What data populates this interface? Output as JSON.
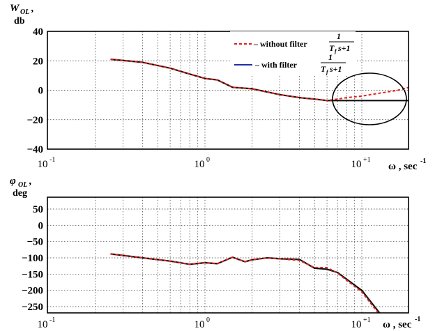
{
  "chart_data": [
    {
      "type": "line",
      "ylabel_main": "W",
      "ylabel_sub": "OL",
      "ylabel_unit": "db",
      "xlabel": "ω , sec",
      "xlabel_sup": "-1",
      "x_scale": "log",
      "xlim": [
        0.1,
        30
      ],
      "ylim": [
        -40,
        40
      ],
      "y_ticks": [
        "40",
        "20",
        "0",
        "−20",
        "−40"
      ],
      "x_ticks": [
        {
          "base": "10",
          "exp": "-1"
        },
        {
          "base": "10",
          "exp": "0"
        },
        {
          "base": "10",
          "exp": "+1"
        }
      ],
      "grid": true,
      "legend": {
        "placement": "top-right",
        "entries": [
          {
            "prefix": "– without filter",
            "num": "1",
            "den": "T",
            "den_sub": "f",
            "den_rest": "s+1"
          },
          {
            "prefix": "– with filter",
            "num": "1",
            "den": "T",
            "den_sub": "f",
            "den_rest": "s+1"
          }
        ]
      },
      "series": [
        {
          "name": "without filter",
          "color": "#e0201b",
          "dash": true,
          "x": [
            0.25,
            0.4,
            0.6,
            0.8,
            1.0,
            1.2,
            1.5,
            2.0,
            3.0,
            4.0,
            5.0,
            6.0,
            7.0,
            8.0,
            10.0,
            13.0,
            17.0,
            20.0
          ],
          "y": [
            21,
            19,
            15,
            11,
            8,
            7,
            2,
            1,
            -3,
            -5,
            -6,
            -7,
            -6,
            -5,
            -4,
            -2,
            0,
            2
          ]
        },
        {
          "name": "with filter",
          "color": "#111111",
          "dash": false,
          "x": [
            0.25,
            0.4,
            0.6,
            0.8,
            1.0,
            1.2,
            1.5,
            2.0,
            3.0,
            4.0,
            5.0,
            6.0,
            7.0,
            8.0,
            10.0,
            13.0,
            17.0,
            20.0
          ],
          "y": [
            21,
            19,
            15,
            11,
            8,
            7,
            2,
            1,
            -3,
            -5,
            -6,
            -7,
            -7,
            -7,
            -7,
            -7,
            -7,
            -7
          ]
        }
      ],
      "annotations": [
        {
          "type": "ellipse",
          "color": "#000000",
          "center_x": 11.0,
          "center_y": -1.3
        }
      ]
    },
    {
      "type": "line",
      "ylabel_main": "φ",
      "ylabel_sub": "OL",
      "ylabel_unit": "deg",
      "xlabel": "ω , sec",
      "xlabel_sup": "-1",
      "x_scale": "log",
      "xlim": [
        0.1,
        30
      ],
      "ylim": [
        -270,
        75
      ],
      "y_ticks": [
        "50",
        "0",
        "−50",
        "−100",
        "−150",
        "−200",
        "−250"
      ],
      "x_ticks": [
        {
          "base": "10",
          "exp": "-1"
        },
        {
          "base": "10",
          "exp": "0"
        },
        {
          "base": "10",
          "exp": "+1"
        }
      ],
      "grid": true,
      "series": [
        {
          "name": "without filter",
          "color": "#e0201b",
          "dash": true,
          "x": [
            0.25,
            0.4,
            0.6,
            0.8,
            1.0,
            1.2,
            1.5,
            1.8,
            2.0,
            2.5,
            3.0,
            4.0,
            5.0,
            6.0,
            7.0,
            10.0,
            13.0
          ],
          "y": [
            -88,
            -100,
            -110,
            -120,
            -115,
            -118,
            -98,
            -112,
            -106,
            -100,
            -103,
            -108,
            -130,
            -130,
            -147,
            -205,
            -275
          ]
        },
        {
          "name": "with filter",
          "color": "#111111",
          "dash": false,
          "x": [
            0.25,
            0.4,
            0.6,
            0.8,
            1.0,
            1.2,
            1.5,
            1.8,
            2.0,
            2.5,
            3.0,
            4.0,
            5.0,
            6.0,
            7.0,
            10.0,
            13.0
          ],
          "y": [
            -88,
            -100,
            -110,
            -120,
            -115,
            -118,
            -98,
            -112,
            -106,
            -100,
            -103,
            -105,
            -132,
            -135,
            -145,
            -200,
            -270
          ]
        }
      ]
    }
  ]
}
